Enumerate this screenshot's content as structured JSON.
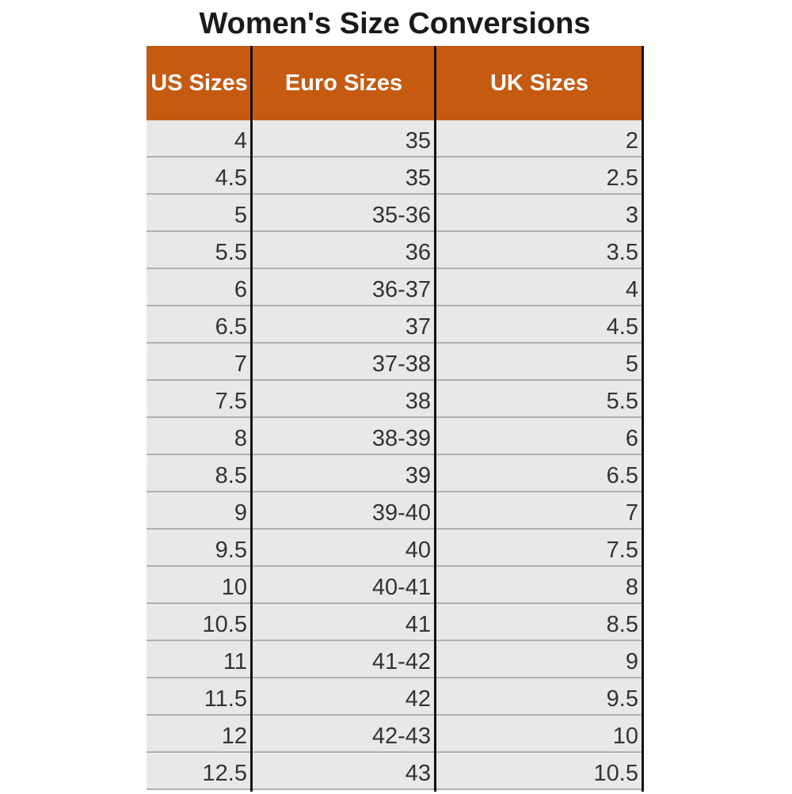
{
  "title": "Women's Size Conversions",
  "table": {
    "header": [
      "US Sizes",
      "Euro Sizes",
      "UK Sizes"
    ],
    "rows": [
      [
        "4",
        "35",
        "2"
      ],
      [
        "4.5",
        "35",
        "2.5"
      ],
      [
        "5",
        "35-36",
        "3"
      ],
      [
        "5.5",
        "36",
        "3.5"
      ],
      [
        "6",
        "36-37",
        "4"
      ],
      [
        "6.5",
        "37",
        "4.5"
      ],
      [
        "7",
        "37-38",
        "5"
      ],
      [
        "7.5",
        "38",
        "5.5"
      ],
      [
        "8",
        "38-39",
        "6"
      ],
      [
        "8.5",
        "39",
        "6.5"
      ],
      [
        "9",
        "39-40",
        "7"
      ],
      [
        "9.5",
        "40",
        "7.5"
      ],
      [
        "10",
        "40-41",
        "8"
      ],
      [
        "10.5",
        "41",
        "8.5"
      ],
      [
        "11",
        "41-42",
        "9"
      ],
      [
        "11.5",
        "42",
        "9.5"
      ],
      [
        "12",
        "42-43",
        "10"
      ],
      [
        "12.5",
        "43",
        "10.5"
      ]
    ]
  }
}
